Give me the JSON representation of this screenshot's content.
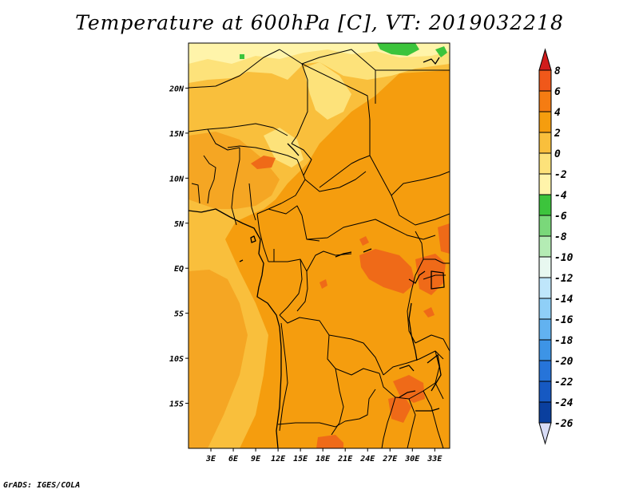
{
  "title": "Temperature at 600hPa [C], VT: 2019032218",
  "credit": "GrADS: IGES/COLA",
  "map": {
    "lon_range": [
      0,
      35
    ],
    "lat_range": [
      -20,
      25
    ],
    "lon_ticks": [
      "3E",
      "6E",
      "9E",
      "12E",
      "15E",
      "18E",
      "21E",
      "24E",
      "27E",
      "30E",
      "33E"
    ],
    "lat_ticks": [
      "20N",
      "15N",
      "10N",
      "5N",
      "EQ",
      "5S",
      "10S",
      "15S"
    ],
    "field_colors": {
      "base": "#f5a623",
      "warm_2_4": "#f59d0e",
      "cool_0_2": "#f9bf3c",
      "cool_m2_0": "#fde27a",
      "cool_m4_m2": "#fff4aa",
      "green": "#3cc43c",
      "hot_4_6": "#ef6a18"
    }
  },
  "colorbar": {
    "labels": [
      "8",
      "6",
      "4",
      "2",
      "0",
      "-2",
      "-4",
      "-6",
      "-8",
      "-10",
      "-12",
      "-14",
      "-16",
      "-18",
      "-20",
      "-22",
      "-24",
      "-26"
    ],
    "colors": [
      "#e8331f",
      "#f0581a",
      "#f57c12",
      "#f59d0e",
      "#f9bf3c",
      "#fde27a",
      "#fff4aa",
      "#3cc43c",
      "#7ad87a",
      "#b4ecb4",
      "#e8f8f0",
      "#bfe6fb",
      "#8fcff7",
      "#62b2f0",
      "#3d94e6",
      "#2674d9",
      "#1659c2",
      "#0a3f9e",
      "#0a1a6e"
    ],
    "top_color": "#d11c1c",
    "bottom_color": "#d8dcf6"
  }
}
